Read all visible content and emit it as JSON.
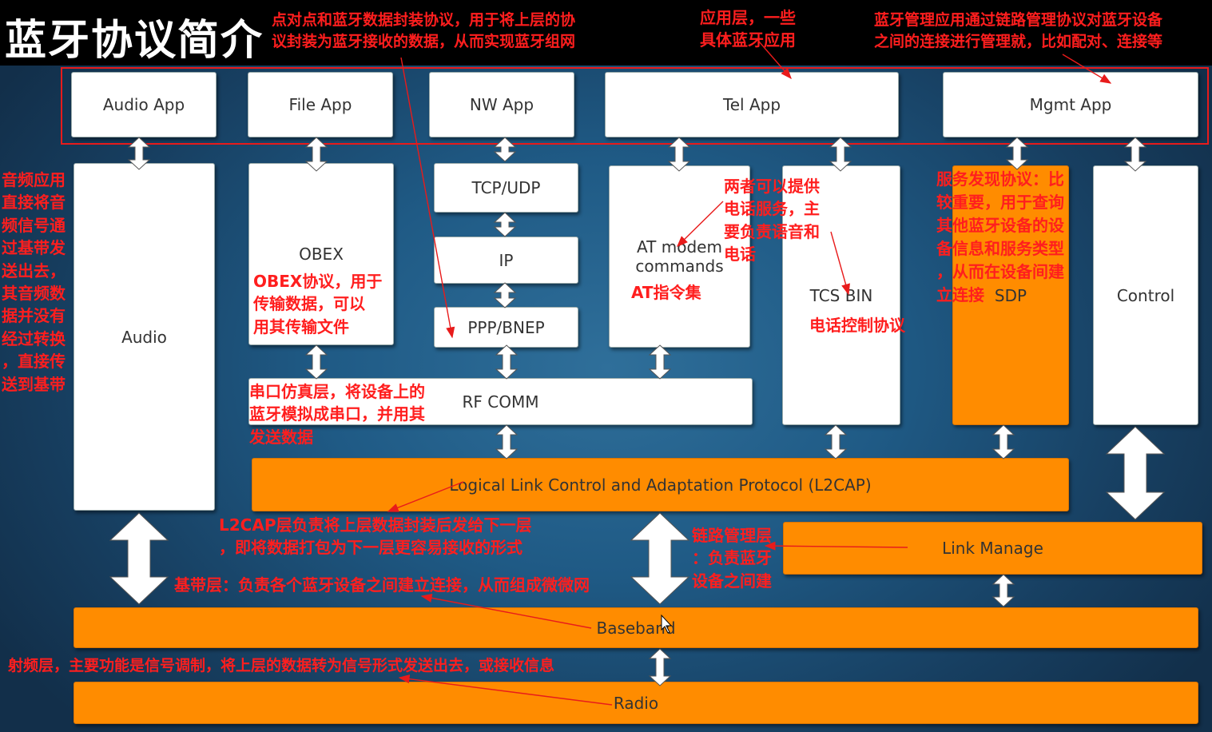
{
  "title": "蓝牙协议简介",
  "boxes": {
    "audio_app": "Audio App",
    "file_app": "File App",
    "nw_app": "NW App",
    "tel_app": "Tel App",
    "mgmt_app": "Mgmt App",
    "audio": "Audio",
    "obex": "OBEX",
    "tcp_udp": "TCP/UDP",
    "ip": "IP",
    "ppp_bnep": "PPP/BNEP",
    "at_modem": "AT modem\ncommands",
    "tcs_bin": "TCS BIN",
    "sdp": "SDP",
    "control": "Control",
    "rf_comm": "RF COMM",
    "l2cap": "Logical Link Control and Adaptation Protocol (L2CAP)",
    "link_manage": "Link Manage",
    "baseband": "Baseband",
    "radio": "Radio"
  },
  "notes": {
    "p2p": "点对点和蓝牙数据封装协议，用于将上层的协\n议封装为蓝牙接收的数据，从而实现蓝牙组网",
    "app_layer": "应用层，一些\n具体蓝牙应用",
    "mgmt": "蓝牙管理应用通过链路管理协议对蓝牙设备\n之间的连接进行管理就，比如配对、连接等",
    "audio": "音频应用\n直接将音\n频信号通\n过基带发\n送出去，\n其音频数\n据并没有\n经过转换\n，直接传\n送到基带",
    "obex": "OBEX协议，用于\n传输数据，可以\n用其传输文件",
    "at_cmd": "AT指令集",
    "phone": "两者可以提供\n电话服务，主\n要负责语音和\n电话",
    "tcs": "电话控制协议",
    "sdp": "服务发现协议：比\n较重要，用于查询\n其他蓝牙设备的设\n备信息和服务类型\n，从而在设备间建\n立连接",
    "rfcomm": "串口仿真层，将设备上的\n蓝牙模拟成串口，并用其\n发送数据",
    "l2cap": "L2CAP层负责将上层数据封装后发给下一层\n，即将数据打包为下一层更容易接收的形式",
    "lm": "链路管理层\n：负责蓝牙\n设备之间建",
    "baseband": "基带层：负责各个蓝牙设备之间建立连接，从而组成微微网",
    "radio": "射频层，主要功能是信号调制，将上层的数据转为信号形式发送出去，或接收信息"
  },
  "colors": {
    "note_red": "#ff1e1e",
    "orange": "#ff8c00",
    "background": "#1f5a85"
  }
}
